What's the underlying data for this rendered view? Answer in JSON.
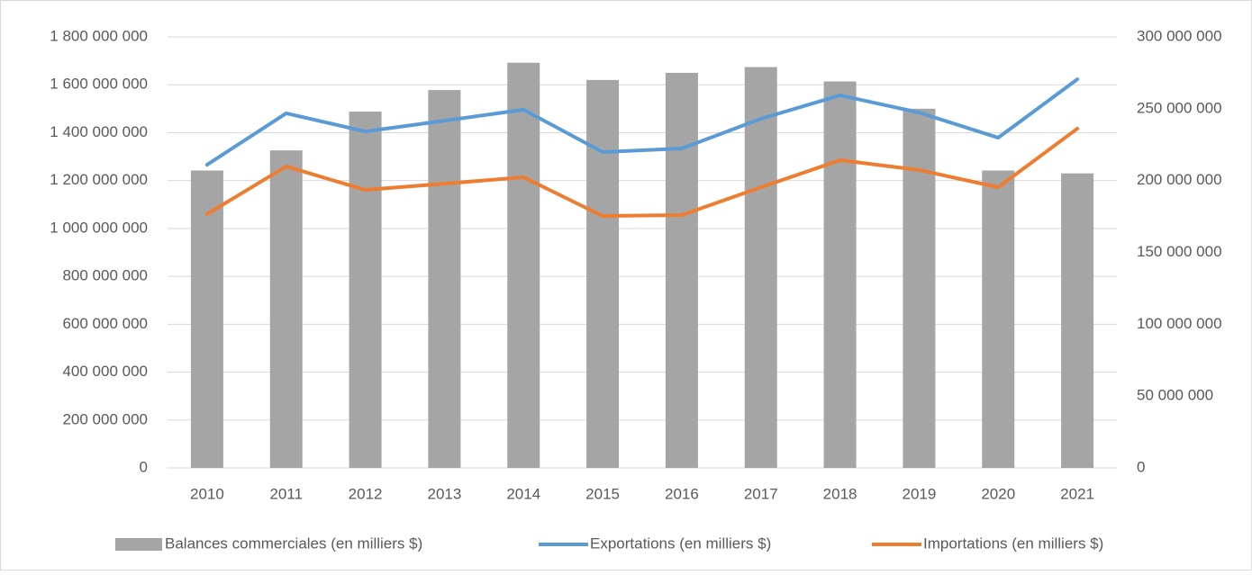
{
  "chart_data": {
    "type": "bar-line",
    "categories": [
      "2010",
      "2011",
      "2012",
      "2013",
      "2014",
      "2015",
      "2016",
      "2017",
      "2018",
      "2019",
      "2020",
      "2021"
    ],
    "series": [
      {
        "name": "Balances commerciales (en milliers $)",
        "type": "bar",
        "axis": "y2",
        "color": "#a5a5a5",
        "values": [
          207000000,
          221000000,
          248000000,
          263000000,
          282000000,
          270000000,
          275000000,
          279000000,
          269000000,
          250000000,
          207000000,
          205000000
        ]
      },
      {
        "name": "Exportations (en milliers $)",
        "type": "line",
        "axis": "y",
        "color": "#5b9bd5",
        "values": [
          1266000000,
          1481000000,
          1405000000,
          1450000000,
          1496000000,
          1319000000,
          1334000000,
          1458000000,
          1556000000,
          1484000000,
          1379000000,
          1623000000
        ]
      },
      {
        "name": "Importations (en milliers $)",
        "type": "line",
        "axis": "y",
        "color": "#ed7d31",
        "values": [
          1060000000,
          1259000000,
          1161000000,
          1187000000,
          1214000000,
          1052000000,
          1056000000,
          1172000000,
          1285000000,
          1244000000,
          1172000000,
          1417000000
        ]
      }
    ],
    "ylim": [
      0,
      1800000000
    ],
    "yticks": [
      0,
      {
        "value": 200000000,
        "label": "200 000 000"
      },
      {
        "value": 400000000,
        "label": "400 000 000"
      },
      {
        "value": 600000000,
        "label": "600 000 000"
      },
      {
        "value": 800000000,
        "label": "800 000 000"
      },
      {
        "value": 1000000000,
        "label": "1 000 000 000"
      },
      {
        "value": 1200000000,
        "label": "1 200 000 000"
      },
      {
        "value": 1400000000,
        "label": "1 400 000 000"
      },
      {
        "value": 1600000000,
        "label": "1 600 000 000"
      },
      {
        "value": 1800000000,
        "label": "1 800 000 000"
      }
    ],
    "y2lim": [
      0,
      300000000
    ],
    "y2ticks": [
      0,
      {
        "value": 50000000,
        "label": "50 000 000"
      },
      {
        "value": 100000000,
        "label": "100 000 000"
      },
      {
        "value": 150000000,
        "label": "150 000 000"
      },
      {
        "value": 200000000,
        "label": "200 000 000"
      },
      {
        "value": 250000000,
        "label": "250 000 000"
      },
      {
        "value": 300000000,
        "label": "300 000 000"
      }
    ],
    "grid": true,
    "legend": "bottom"
  }
}
